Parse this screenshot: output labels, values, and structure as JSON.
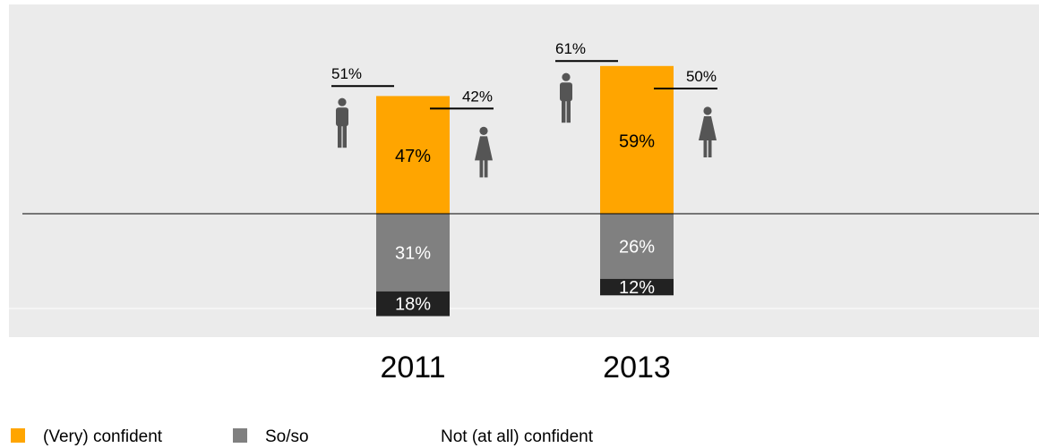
{
  "chart_data": {
    "type": "bar",
    "stacking": "diverging",
    "categories": [
      "2011",
      "2013"
    ],
    "series": [
      {
        "name": "(Very) confident",
        "values": [
          47,
          59
        ],
        "color": "#FFA500",
        "label_color": "#000000"
      },
      {
        "name": "So/so",
        "values": [
          31,
          26
        ],
        "color": "#808080",
        "label_color": "#ffffff"
      },
      {
        "name": "Not (at all) confident",
        "values": [
          18,
          12
        ],
        "color": "#222222",
        "label_color": "#ffffff"
      }
    ],
    "value_labels": [
      [
        "47%",
        "59%"
      ],
      [
        "31%",
        "26%"
      ],
      [
        "18%",
        "12%"
      ]
    ],
    "gender_breakdown": [
      {
        "category": "2011",
        "male": 51,
        "male_label": "51%",
        "female": 42,
        "female_label": "42%"
      },
      {
        "category": "2013",
        "male": 61,
        "male_label": "61%",
        "female": 50,
        "female_label": "50%"
      }
    ],
    "icons": [
      "male-icon",
      "female-icon"
    ],
    "legend_position": "bottom-left",
    "grid": false,
    "background_color": "#EBEBEB"
  }
}
